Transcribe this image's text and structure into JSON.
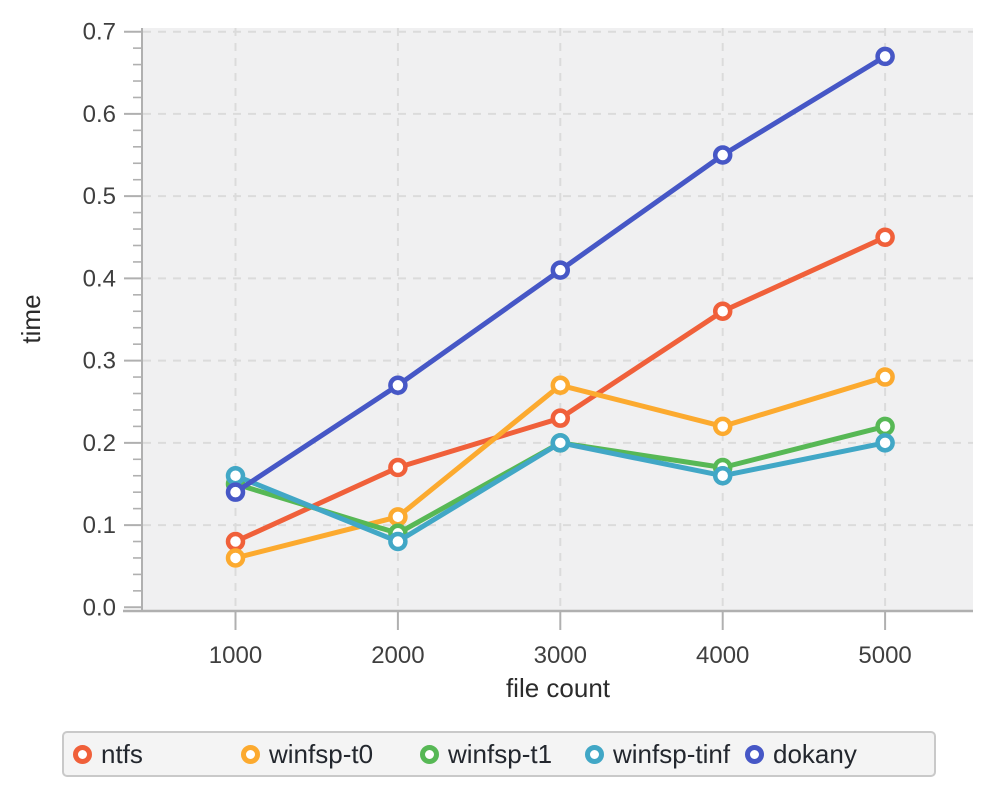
{
  "chart_data": {
    "type": "line",
    "title": "",
    "xlabel": "file count",
    "ylabel": "time",
    "x": [
      1000,
      2000,
      3000,
      4000,
      5000
    ],
    "series": [
      {
        "name": "ntfs",
        "color": "#f0603a",
        "values": [
          0.08,
          0.17,
          0.23,
          0.36,
          0.45
        ]
      },
      {
        "name": "winfsp-t0",
        "color": "#fcaa2f",
        "values": [
          0.06,
          0.11,
          0.27,
          0.22,
          0.28
        ]
      },
      {
        "name": "winfsp-t1",
        "color": "#57b855",
        "values": [
          0.15,
          0.09,
          0.2,
          0.17,
          0.22
        ]
      },
      {
        "name": "winfsp-tinf",
        "color": "#41a7c6",
        "values": [
          0.16,
          0.08,
          0.2,
          0.16,
          0.2
        ]
      },
      {
        "name": "dokany",
        "color": "#4657c6",
        "values": [
          0.14,
          0.27,
          0.41,
          0.55,
          0.67
        ]
      }
    ],
    "xlim": [
      430,
      5560
    ],
    "ylim": [
      0.0,
      0.7
    ],
    "xticks": [
      1000,
      2000,
      3000,
      4000,
      5000
    ],
    "xtick_labels": [
      "1000",
      "2000",
      "3000",
      "4000",
      "5000"
    ],
    "yticks": [
      0.0,
      0.1,
      0.2,
      0.3,
      0.4,
      0.5,
      0.6,
      0.7
    ],
    "ytick_labels": [
      "0.0",
      "0.1",
      "0.2",
      "0.3",
      "0.4",
      "0.5",
      "0.6",
      "0.7"
    ],
    "y_minor_tick_step": 0.02,
    "grid": true,
    "grid_style": "dashed",
    "legend_position": "bottom",
    "marker": "open-circle"
  },
  "style": {
    "plot_bg": "#f0f0f1",
    "grid_color": "#dbdbdb",
    "axis_color": "#b0b0b0",
    "tick_color": "#b0b0b0",
    "tick_label_color": "#3f3f3f",
    "axis_label_color": "#2b2b2b",
    "legend_bg": "#f4f4f4",
    "legend_border": "#c9c9c9",
    "legend_text": "#23272e",
    "marker_fill": "#ffffff"
  }
}
